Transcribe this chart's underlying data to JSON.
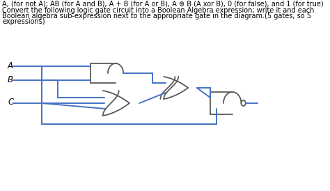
{
  "bg_color": "#ffffff",
  "line_color": "#4472c4",
  "gate_color": "#595959",
  "text_color": "#000000",
  "title_line1": "A, (for not A); AB (for A and B), A + B (for A or B), A ⊕ B (A xor B), 0 (for false), and 1 (for true)",
  "title_line2": "Convert the following logic gate circuit into a Boolean Algebra expression; write it and each",
  "title_line3": "Boolean algebra sub-expression next to the appropriate gate in the diagram.(5 gates, so 5",
  "title_line4": "expressions)",
  "label_A": "A",
  "label_B": "B",
  "label_C": "C",
  "font_size_text": 7.0,
  "font_size_labels": 8.5,
  "lw_wire": 1.4,
  "lw_gate": 1.3
}
